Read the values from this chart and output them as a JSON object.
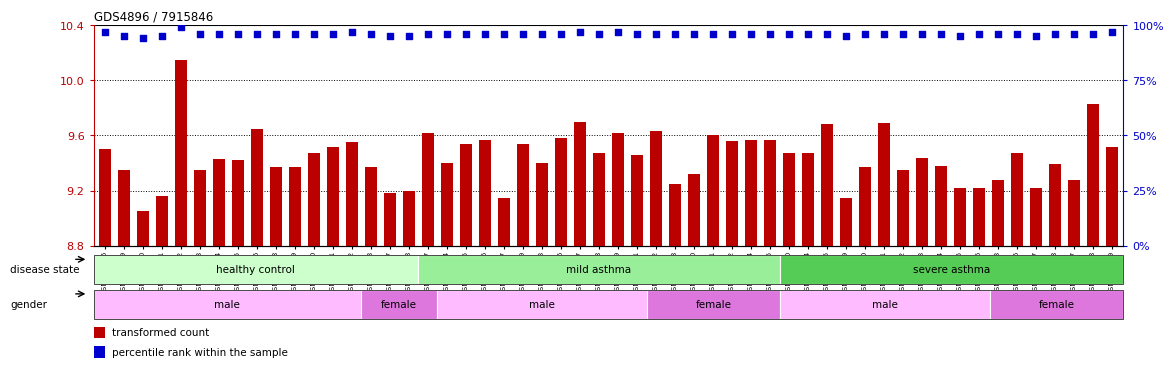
{
  "title": "GDS4896 / 7915846",
  "samples": [
    "GSM665386",
    "GSM665389",
    "GSM665390",
    "GSM665391",
    "GSM665392",
    "GSM665393",
    "GSM665394",
    "GSM665395",
    "GSM665396",
    "GSM665398",
    "GSM665399",
    "GSM665400",
    "GSM665401",
    "GSM665402",
    "GSM665403",
    "GSM665387",
    "GSM665388",
    "GSM665397",
    "GSM665404",
    "GSM665405",
    "GSM665406",
    "GSM665407",
    "GSM665409",
    "GSM665413",
    "GSM665416",
    "GSM665417",
    "GSM665418",
    "GSM665419",
    "GSM665421",
    "GSM665422",
    "GSM665408",
    "GSM665410",
    "GSM665411",
    "GSM665412",
    "GSM665414",
    "GSM665415",
    "GSM665420",
    "GSM665424",
    "GSM665425",
    "GSM665429",
    "GSM665430",
    "GSM665431",
    "GSM665432",
    "GSM665433",
    "GSM665434",
    "GSM665435",
    "GSM665436",
    "GSM665423",
    "GSM665426",
    "GSM665427",
    "GSM665428",
    "GSM665437",
    "GSM665438",
    "GSM665439"
  ],
  "bar_values": [
    9.5,
    9.35,
    9.05,
    9.16,
    10.15,
    9.35,
    9.43,
    9.42,
    9.65,
    9.37,
    9.37,
    9.47,
    9.52,
    9.55,
    9.37,
    9.18,
    9.2,
    9.62,
    9.4,
    9.54,
    9.57,
    9.15,
    9.54,
    9.4,
    9.58,
    9.7,
    9.47,
    9.62,
    9.46,
    9.63,
    9.25,
    9.32,
    9.6,
    9.56,
    9.57,
    9.57,
    9.47,
    9.47,
    9.68,
    9.15,
    9.37,
    9.69,
    9.35,
    9.44,
    9.38,
    9.22,
    9.22,
    9.28,
    9.47,
    9.22,
    9.39,
    9.28,
    9.83,
    9.52
  ],
  "percentile_pct": [
    97,
    95,
    94,
    95,
    99,
    96,
    96,
    96,
    96,
    96,
    96,
    96,
    96,
    97,
    96,
    95,
    95,
    96,
    96,
    96,
    96,
    96,
    96,
    96,
    96,
    97,
    96,
    97,
    96,
    96,
    96,
    96,
    96,
    96,
    96,
    96,
    96,
    96,
    96,
    95,
    96,
    96,
    96,
    96,
    96,
    95,
    96,
    96,
    96,
    95,
    96,
    96,
    96,
    97
  ],
  "disease_state_groups": [
    {
      "label": "healthy control",
      "start": 0,
      "end": 17
    },
    {
      "label": "mild asthma",
      "start": 17,
      "end": 36
    },
    {
      "label": "severe asthma",
      "start": 36,
      "end": 54
    }
  ],
  "disease_state_colors": {
    "healthy control": "#ccffcc",
    "mild asthma": "#99ee99",
    "severe asthma": "#55cc55"
  },
  "gender_groups": [
    {
      "label": "male",
      "start": 0,
      "end": 14
    },
    {
      "label": "female",
      "start": 14,
      "end": 18
    },
    {
      "label": "male",
      "start": 18,
      "end": 29
    },
    {
      "label": "female",
      "start": 29,
      "end": 36
    },
    {
      "label": "male",
      "start": 36,
      "end": 47
    },
    {
      "label": "female",
      "start": 47,
      "end": 54
    }
  ],
  "gender_colors": {
    "male": "#ffbbff",
    "female": "#dd77dd"
  },
  "ylim_left": [
    8.8,
    10.4
  ],
  "yticks_left": [
    8.8,
    9.2,
    9.6,
    10.0,
    10.4
  ],
  "yticks_right_pct": [
    0,
    25,
    50,
    75,
    100
  ],
  "bar_color": "#bb0000",
  "dot_color": "#0000cc",
  "background_color": "#ffffff"
}
